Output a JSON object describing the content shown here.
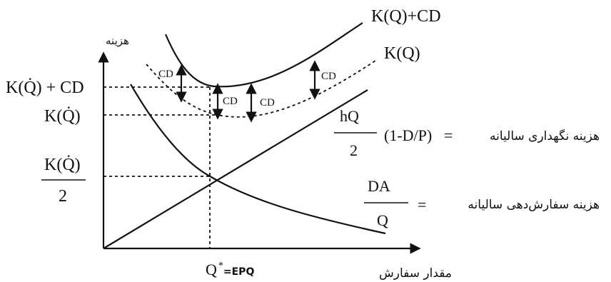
{
  "axes": {
    "y_label": "هزینه",
    "x_label": "مقدار سفارش",
    "x_marker_main": "Q",
    "x_marker_star": "*",
    "x_marker_suffix": "=EPQ"
  },
  "curves": {
    "total_plus_cd": "K(Q)+CD",
    "total": "K(Q)"
  },
  "y_ticks": {
    "k_plus_cd": "K(Q̇) + CD",
    "k": "K(Q̇)",
    "k_half_num": "K(Q̇)",
    "k_half_den": "2"
  },
  "cd_label": "CD",
  "formulas": {
    "holding": {
      "label": "هزینه نگهداری سالیانه",
      "eq": "=",
      "num": "hQ",
      "den": "2",
      "factor": "(1-D/P)"
    },
    "ordering": {
      "label": "هزینه سفارش‌دهی سالیانه",
      "eq": "=",
      "num": "DA",
      "den": "Q"
    }
  }
}
